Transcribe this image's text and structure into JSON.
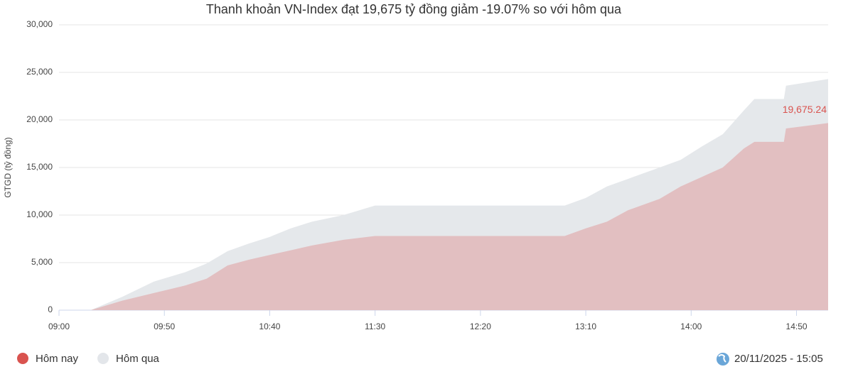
{
  "chart_data": {
    "type": "area",
    "title": "Thanh khoản VN-Index đạt 19,675 tỷ đồng giảm -19.07% so với hôm qua",
    "y_label": "GTGD (tỷ đồng)",
    "timestamp": "20/11/2025 - 15:05",
    "x": [
      "09:15",
      "09:30",
      "09:45",
      "10:00",
      "10:10",
      "10:20",
      "10:30",
      "10:40",
      "10:50",
      "11:00",
      "11:15",
      "11:30",
      "13:00",
      "13:10",
      "13:20",
      "13:30",
      "13:45",
      "13:55",
      "14:05",
      "14:15",
      "14:25",
      "14:30",
      "14:44",
      "14:45",
      "15:05"
    ],
    "series": [
      {
        "name": "Hôm nay",
        "color": "#d9534f",
        "fill": "#e2bfc1",
        "values": [
          0,
          1000,
          1800,
          2600,
          3300,
          4700,
          5300,
          5800,
          6300,
          6800,
          7400,
          7800,
          7800,
          8600,
          9300,
          10500,
          11700,
          13000,
          14000,
          15000,
          17000,
          17700,
          17700,
          19100,
          19675.24
        ],
        "value_labels": [
          null,
          null,
          null,
          null,
          null,
          null,
          null,
          null,
          null,
          null,
          null,
          null,
          null,
          null,
          null,
          null,
          null,
          null,
          null,
          null,
          null,
          null,
          null,
          null,
          "19,675.24"
        ]
      },
      {
        "name": "Hôm qua",
        "color": "#e3e6ea",
        "fill": "#e5e8eb",
        "values": [
          0,
          1400,
          3000,
          4000,
          4900,
          6200,
          7000,
          7700,
          8600,
          9300,
          10000,
          11000,
          11000,
          11800,
          13000,
          13800,
          15000,
          15800,
          17200,
          18500,
          21000,
          22200,
          22200,
          23600,
          24300
        ]
      }
    ],
    "xlim": [
      "09:00",
      "15:05"
    ],
    "xticks": [
      "09:00",
      "09:50",
      "10:40",
      "11:30",
      "12:20",
      "13:10",
      "14:00",
      "14:50"
    ],
    "ylim": [
      0,
      30000
    ],
    "yticks": [
      0,
      {
        "value": 5000,
        "label": "5,000"
      },
      {
        "value": 10000,
        "label": "10,000"
      },
      {
        "value": 15000,
        "label": "15,000"
      },
      {
        "value": 20000,
        "label": "20,000"
      },
      {
        "value": 25000,
        "label": "25,000"
      },
      {
        "value": 30000,
        "label": "30,000"
      }
    ],
    "grid": true
  }
}
